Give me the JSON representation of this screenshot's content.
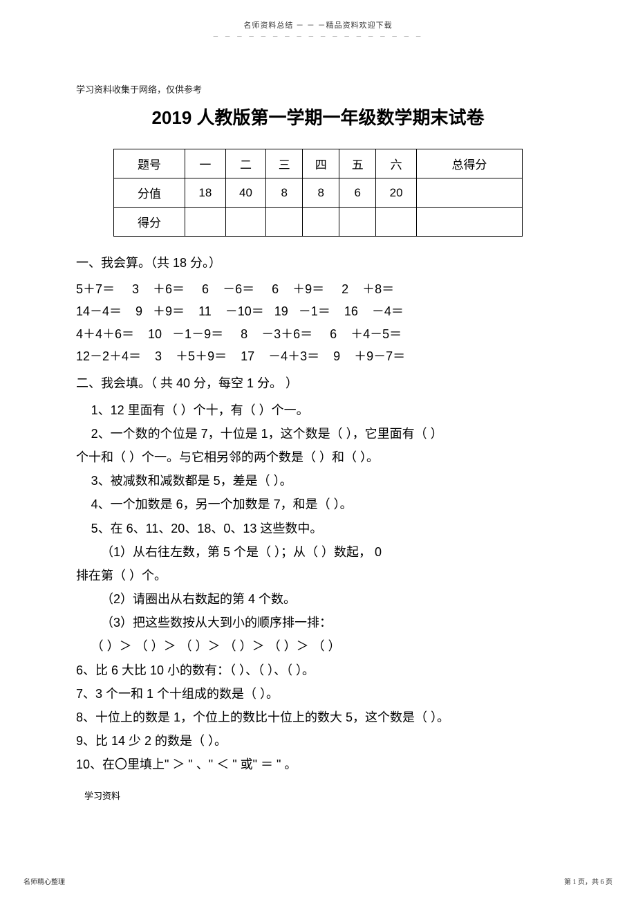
{
  "header": {
    "top_note": "名师资料总结 － － －精品资料欢迎下载",
    "dots": "－ － － － － － － － － － － － － － － － － －"
  },
  "meta": {
    "source_note": "学习资料收集于网络，仅供参考",
    "footer_left": "学习资料",
    "page_footer_left": "名师精心整理",
    "page_footer_right": "第 1 页，共 6 页"
  },
  "title": "2019 人教版第一学期一年级数学期末试卷",
  "score_table": {
    "headers": [
      "题号",
      "一",
      "二",
      "三",
      "四",
      "五",
      "六",
      "总得分"
    ],
    "row2": [
      "分值",
      "18",
      "40",
      "8",
      "8",
      "6",
      "20",
      ""
    ],
    "row3": [
      "得分",
      "",
      "",
      "",
      "",
      "",
      "",
      ""
    ]
  },
  "sections": {
    "s1_head": "一、我会算。（共   18 分。）",
    "arith": [
      "5＋7＝     3    ＋6＝     6    －6＝     6    ＋9＝     2    ＋8＝",
      "14－4＝    9   ＋9＝    11    －10＝   19   －1＝    16    －4＝",
      "4＋4＋6＝    10   －1－9＝     8    －3＋6＝     6    ＋4－5＝",
      "12－2＋4＝    3    ＋5＋9＝    17    －4＋3＝    9    ＋9－7＝"
    ],
    "s2_head": "二、我会填。（ 共 40 分，每空 1 分。 ）",
    "fills": [
      {
        "cls": "fill-q",
        "t": "1、12 里面有（      ）个十，有（      ）个一。"
      },
      {
        "cls": "fill-q",
        "t": "2、一个数的个位是   7，十位是   1，这个数是（     ），它里面有（   ）"
      },
      {
        "cls": "fill-q noindent",
        "t": "个十和（   ）个一。与它相另邻的两个数是（       ）和（      ）。"
      },
      {
        "cls": "fill-q",
        "t": "3、被减数和减数都是   5，差是（          ）。"
      },
      {
        "cls": "fill-q",
        "t": "4、一个加数是   6，另一个加数是   7，和是（        ）。"
      },
      {
        "cls": "fill-q",
        "t": "5、在 6、11、20、18、0、13 这些数中。"
      },
      {
        "cls": "fill-q sub",
        "t": "（1）从右往左数，第   5 个是（        ）；从（        ）数起， 0"
      },
      {
        "cls": "fill-q noindent",
        "t": "排在第（          ）个。"
      },
      {
        "cls": "fill-q sub",
        "t": "（2）请圈出从右数起的第   4 个数。"
      },
      {
        "cls": "fill-q sub",
        "t": "（3）把这些数按从大到小的顺序排一排："
      },
      {
        "cls": "fill-q",
        "t": "（     ）＞ （     ）＞ （     ）＞ （     ）＞ （     ）＞ （     ）"
      },
      {
        "cls": "fill-q noindent",
        "t": "6、比 6 大比 10 小的数有：（      ）、（     ）、（      ）。"
      },
      {
        "cls": "fill-q noindent",
        "t": "7、3 个一和 1 个十组成的数是（      ）。"
      },
      {
        "cls": "fill-q noindent",
        "t": "8、十位上的数是   1，个位上的数比十位上的数大   5，这个数是（    ）。"
      },
      {
        "cls": "fill-q noindent",
        "t": "9、比 14 少 2 的数是（      ）。"
      },
      {
        "cls": "fill-q noindent",
        "t": "10、在〇里填上\" ＞ \" 、\" ＜ \" 或\" ＝ \" 。"
      }
    ]
  }
}
